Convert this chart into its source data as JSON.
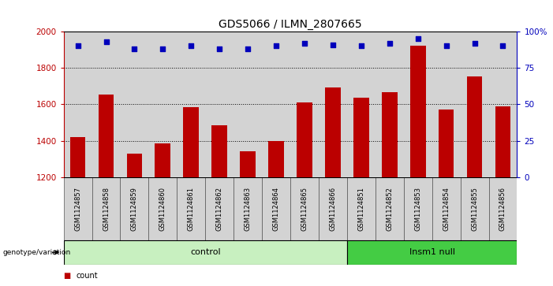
{
  "title": "GDS5066 / ILMN_2807665",
  "samples": [
    "GSM1124857",
    "GSM1124858",
    "GSM1124859",
    "GSM1124860",
    "GSM1124861",
    "GSM1124862",
    "GSM1124863",
    "GSM1124864",
    "GSM1124865",
    "GSM1124866",
    "GSM1124851",
    "GSM1124852",
    "GSM1124853",
    "GSM1124854",
    "GSM1124855",
    "GSM1124856"
  ],
  "counts": [
    1420,
    1655,
    1330,
    1385,
    1585,
    1485,
    1345,
    1400,
    1610,
    1695,
    1635,
    1665,
    1920,
    1570,
    1755,
    1590
  ],
  "percentile_ranks": [
    90,
    93,
    88,
    88,
    90,
    88,
    88,
    90,
    92,
    91,
    90,
    92,
    95,
    90,
    92,
    90
  ],
  "control_count": 10,
  "insm1_count": 6,
  "control_label": "control",
  "insm1_label": "Insm1 null",
  "genotype_label": "genotype/variation",
  "ylim_left": [
    1200,
    2000
  ],
  "ylim_right": [
    0,
    100
  ],
  "yticks_left": [
    1200,
    1400,
    1600,
    1800,
    2000
  ],
  "yticks_right": [
    0,
    25,
    50,
    75,
    100
  ],
  "bar_color": "#bb0000",
  "dot_color": "#0000bb",
  "bg_color_sample": "#d3d3d3",
  "bg_color_control": "#c8f0c0",
  "bg_color_insm1": "#44cc44",
  "title_fontsize": 10,
  "tick_fontsize": 7.5,
  "sample_fontsize": 6,
  "bar_width": 0.55
}
